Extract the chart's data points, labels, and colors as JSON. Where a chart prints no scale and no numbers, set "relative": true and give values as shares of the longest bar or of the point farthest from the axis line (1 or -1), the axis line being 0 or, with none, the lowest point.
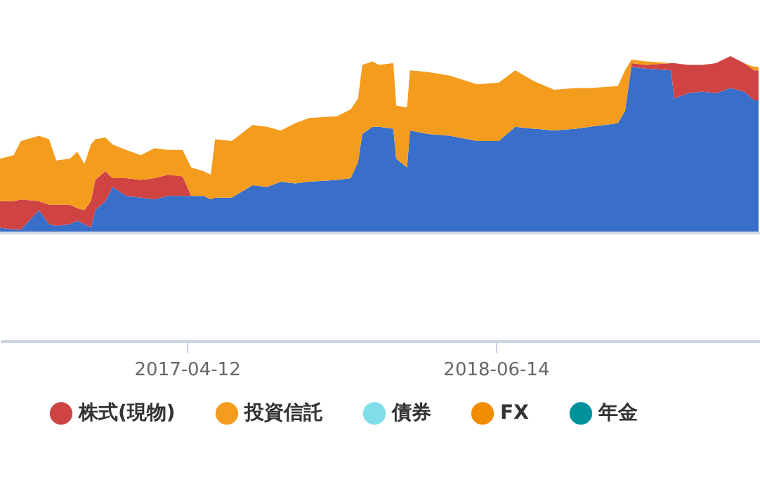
{
  "chart_data": {
    "type": "area",
    "stacked": true,
    "relative": true,
    "legend": "bottom",
    "x": [
      "2016-07-27",
      "2016-08-15",
      "2016-08-25",
      "2016-09-19",
      "2016-10-03",
      "2016-10-13",
      "2016-11-01",
      "2016-11-11",
      "2016-11-21",
      "2016-11-30",
      "2016-12-06",
      "2016-12-20",
      "2016-12-30",
      "2017-01-18",
      "2017-02-07",
      "2017-02-26",
      "2017-03-17",
      "2017-04-06",
      "2017-04-18",
      "2017-05-05",
      "2017-05-15",
      "2017-05-21",
      "2017-06-13",
      "2017-07-12",
      "2017-08-01",
      "2017-08-20",
      "2017-09-09",
      "2017-09-28",
      "2017-11-06",
      "2017-11-25",
      "2017-12-05",
      "2017-12-11",
      "2017-12-25",
      "2018-01-03",
      "2018-01-23",
      "2018-01-27",
      "2018-02-11",
      "2018-02-15",
      "2018-03-12",
      "2018-04-11",
      "2018-05-19",
      "2018-06-18",
      "2018-07-11",
      "2018-08-05",
      "2018-09-03",
      "2018-10-03",
      "2018-10-22",
      "2018-11-30",
      "2018-12-10",
      "2018-12-19",
      "2019-01-08",
      "2019-02-12",
      "2019-02-16",
      "2019-03-07",
      "2019-03-27",
      "2019-04-15",
      "2019-05-05",
      "2019-05-24",
      "2019-06-07",
      "2019-06-13"
    ],
    "xlim": [
      "2016-07-27",
      "2019-06-15"
    ],
    "xticks": [
      "2017-04-12",
      "2018-06-14"
    ],
    "series": [
      {
        "color": "#3a6fc9",
        "values": [
          0.03,
          0.02,
          0.02,
          0.13,
          0.05,
          0.04,
          0.05,
          0.07,
          0.05,
          0.03,
          0.13,
          0.18,
          0.26,
          0.21,
          0.2,
          0.19,
          0.21,
          0.21,
          0.21,
          0.21,
          0.19,
          0.2,
          0.2,
          0.27,
          0.26,
          0.29,
          0.28,
          0.29,
          0.3,
          0.31,
          0.4,
          0.56,
          0.6,
          0.6,
          0.59,
          0.42,
          0.37,
          0.58,
          0.56,
          0.55,
          0.52,
          0.52,
          0.6,
          0.59,
          0.58,
          0.59,
          0.6,
          0.62,
          0.69,
          0.94,
          0.93,
          0.92,
          0.76,
          0.79,
          0.8,
          0.79,
          0.82,
          0.8,
          0.75,
          0.75
        ]
      },
      {
        "name": "株式(現物)",
        "color": "#cf4343",
        "values": [
          0.15,
          0.16,
          0.17,
          0.05,
          0.11,
          0.12,
          0.11,
          0.07,
          0.08,
          0.15,
          0.17,
          0.17,
          0.05,
          0.1,
          0.1,
          0.12,
          0.12,
          0.11,
          0,
          0,
          0,
          0,
          0,
          0,
          0,
          0,
          0,
          0,
          0,
          0,
          0,
          0,
          0,
          0,
          0,
          0,
          0,
          0,
          0,
          0,
          0,
          0,
          0,
          0,
          0,
          0,
          0,
          0,
          0,
          0.02,
          0.02,
          0.04,
          0.2,
          0.16,
          0.15,
          0.17,
          0.18,
          0.16,
          0.17,
          0.17
        ]
      },
      {
        "name": "投資信託",
        "color": "#f39c1e",
        "values": [
          0.24,
          0.26,
          0.33,
          0.37,
          0.37,
          0.25,
          0.26,
          0.32,
          0.26,
          0.32,
          0.23,
          0.19,
          0.19,
          0.16,
          0.14,
          0.17,
          0.14,
          0.15,
          0.16,
          0.14,
          0.14,
          0.33,
          0.32,
          0.34,
          0.34,
          0.29,
          0.34,
          0.36,
          0.36,
          0.39,
          0.36,
          0.39,
          0.37,
          0.35,
          0.37,
          0.3,
          0.34,
          0.34,
          0.35,
          0.34,
          0.32,
          0.33,
          0.32,
          0.27,
          0.23,
          0.23,
          0.22,
          0.21,
          0.23,
          0.02,
          0.02,
          0,
          0,
          0,
          0,
          0,
          0,
          0,
          0.02,
          0.02
        ]
      },
      {
        "name": "債券",
        "color": "#80deea",
        "values": [
          null,
          null,
          null,
          null,
          null,
          null,
          null,
          null,
          null,
          null,
          null,
          null,
          null,
          null,
          null,
          null,
          null,
          null,
          null,
          null,
          null,
          null,
          null,
          null,
          null,
          null,
          null,
          null,
          null,
          null,
          null,
          null,
          null,
          null,
          null,
          null,
          null,
          null,
          null,
          null,
          null,
          null,
          null,
          null,
          null,
          null,
          null,
          null,
          null,
          null,
          null,
          null,
          null,
          null,
          null,
          null,
          null,
          null,
          null,
          null
        ]
      },
      {
        "name": "FX",
        "color": "#ef8c00",
        "values": [
          null,
          null,
          null,
          null,
          null,
          null,
          null,
          null,
          null,
          null,
          null,
          null,
          null,
          null,
          null,
          null,
          null,
          null,
          null,
          null,
          null,
          null,
          null,
          null,
          null,
          null,
          null,
          null,
          null,
          null,
          null,
          null,
          null,
          null,
          null,
          null,
          null,
          null,
          null,
          null,
          null,
          null,
          null,
          null,
          null,
          null,
          null,
          null,
          null,
          null,
          null,
          null,
          null,
          null,
          null,
          null,
          null,
          null,
          null,
          null
        ]
      },
      {
        "name": "年金",
        "color": "#00929b",
        "values": [
          null,
          null,
          null,
          null,
          null,
          null,
          null,
          null,
          null,
          null,
          null,
          null,
          null,
          null,
          null,
          null,
          null,
          null,
          null,
          null,
          null,
          null,
          null,
          null,
          null,
          null,
          null,
          null,
          null,
          null,
          null,
          null,
          null,
          null,
          null,
          null,
          null,
          null,
          null,
          null,
          null,
          null,
          null,
          null,
          null,
          null,
          null,
          null,
          null,
          null,
          null,
          null,
          null,
          null,
          null,
          null,
          null,
          null,
          null,
          null
        ]
      }
    ]
  }
}
